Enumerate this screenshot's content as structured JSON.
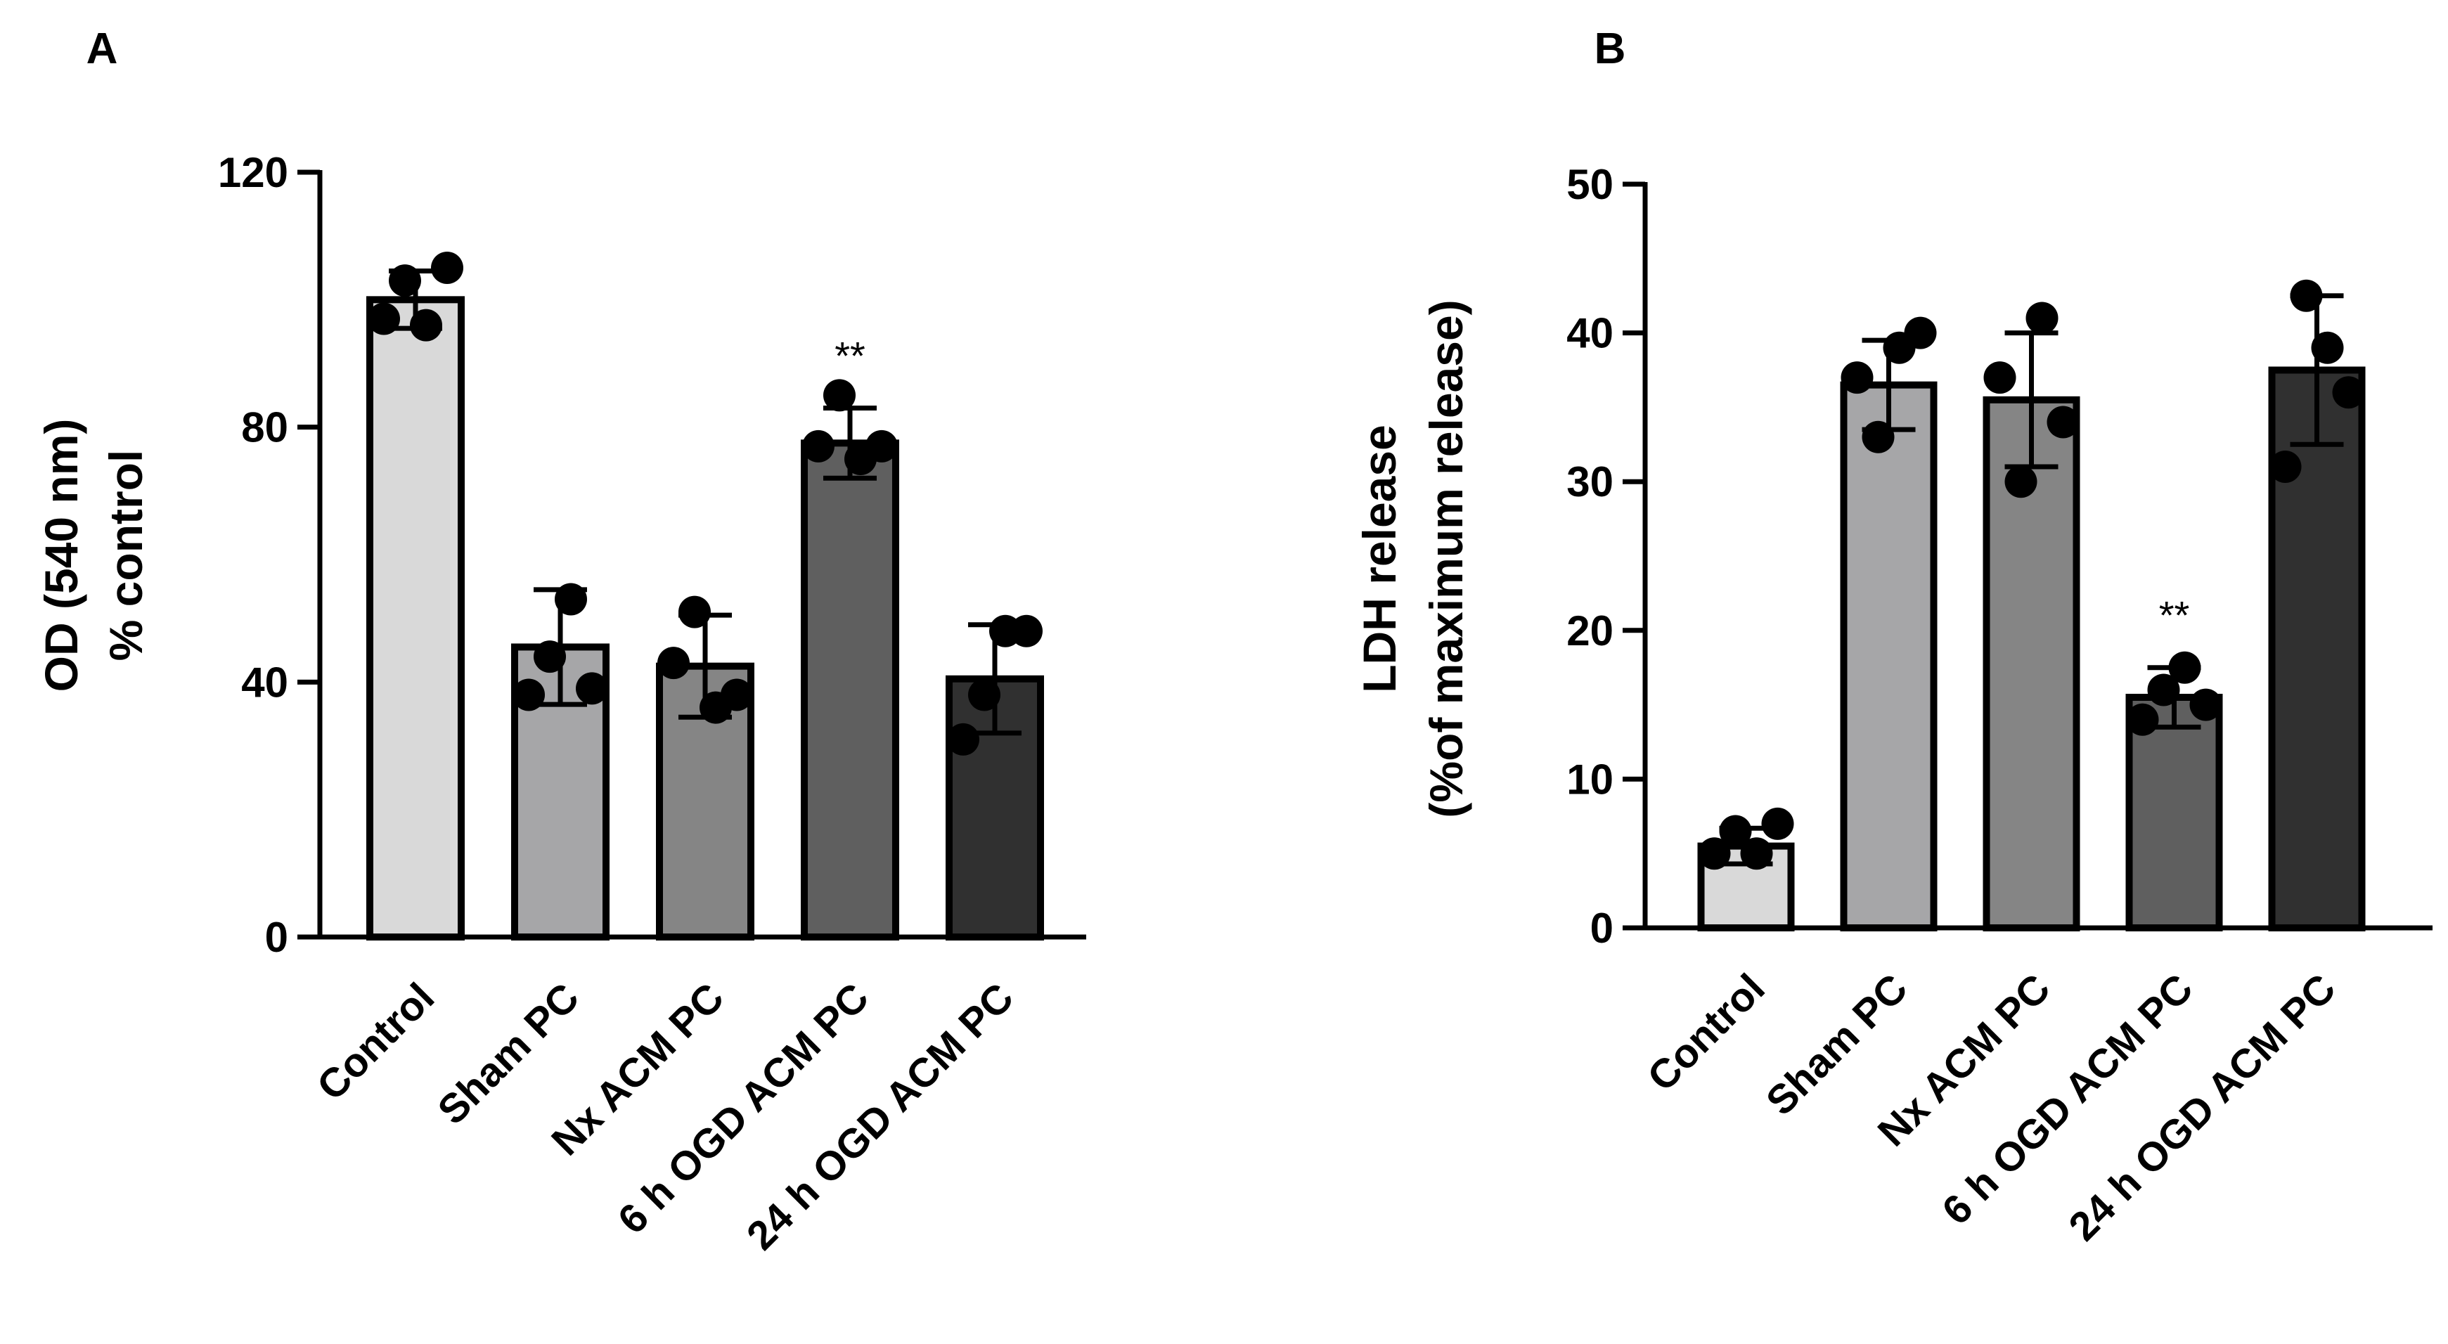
{
  "chart_data": [
    {
      "panel": "A",
      "type": "bar",
      "ylabel": [
        "OD (540 nm)",
        "% control"
      ],
      "xlabel": "",
      "ylim": [
        0,
        120
      ],
      "yticks": [
        0,
        40,
        80,
        120
      ],
      "categories": [
        "Control",
        "Sham PC",
        "Nx ACM PC",
        "6 h OGD ACM PC",
        "24 h OGD ACM PC"
      ],
      "values": [
        100,
        45.5,
        42.5,
        77.5,
        40.5
      ],
      "error": [
        4.5,
        9,
        8,
        5.5,
        8.5
      ],
      "colors": [
        "#d9d9d9",
        "#a6a6a8",
        "#858585",
        "#5f5f5f",
        "#303030"
      ],
      "points": [
        [
          97,
          103,
          96,
          105
        ],
        [
          38,
          44,
          53,
          39
        ],
        [
          43,
          51,
          36,
          38
        ],
        [
          77,
          85,
          75,
          77
        ],
        [
          31,
          38,
          48,
          48
        ]
      ],
      "significance": [
        null,
        null,
        null,
        "**",
        null
      ]
    },
    {
      "panel": "B",
      "type": "bar",
      "ylabel": [
        "LDH release",
        "(%of maximum release)"
      ],
      "xlabel": "",
      "ylim": [
        0,
        50
      ],
      "yticks": [
        0,
        10,
        20,
        30,
        40,
        50
      ],
      "categories": [
        "Control",
        "Sham PC",
        "Nx ACM PC",
        "6 h OGD ACM PC",
        "24 h OGD ACM PC"
      ],
      "values": [
        5.5,
        36.5,
        35.5,
        15.5,
        37.5
      ],
      "error": [
        1.2,
        3,
        4.5,
        2,
        5
      ],
      "colors": [
        "#d9d9d9",
        "#a6a6a8",
        "#858585",
        "#5f5f5f",
        "#303030"
      ],
      "points": [
        [
          5,
          6.5,
          5,
          7
        ],
        [
          37,
          33,
          39,
          40
        ],
        [
          37,
          30,
          41,
          34
        ],
        [
          14,
          16,
          17.5,
          15
        ],
        [
          31,
          42.5,
          39,
          36
        ]
      ],
      "significance": [
        null,
        null,
        null,
        "**",
        null
      ]
    }
  ]
}
